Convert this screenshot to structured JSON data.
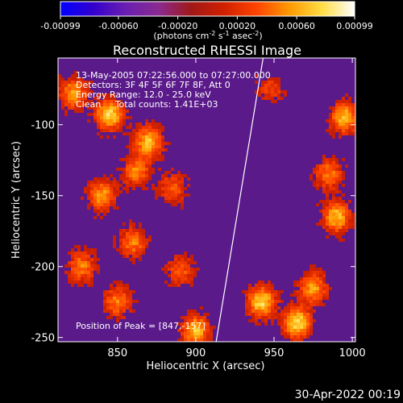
{
  "chart_data": {
    "type": "heatmap",
    "title": "Reconstructed RHESSI Image",
    "xlabel": "Heliocentric X (arcsec)",
    "ylabel": "Heliocentric Y (arcsec)",
    "xlim": [
      812,
      1002
    ],
    "ylim": [
      -253,
      -53
    ],
    "x_ticks": [
      850,
      900,
      950,
      1000
    ],
    "y_ticks": [
      -100,
      -150,
      -200,
      -250
    ],
    "colorbar": {
      "ticks": [
        "-0.00099",
        "-0.00060",
        "-0.00020",
        "0.00020",
        "0.00060",
        "0.00099"
      ],
      "range": [
        -0.00099,
        0.00099
      ],
      "unit_label": "(photons cm",
      "unit_exp1": "-2",
      "unit_mid": " s",
      "unit_exp2": "-1",
      "unit_mid2": " asec",
      "unit_exp3": "-2",
      "unit_close": ")",
      "colors": [
        "#0000ff",
        "#3300cc",
        "#6a1fb0",
        "#8a2a90",
        "#a01818",
        "#d02000",
        "#ff4400",
        "#ff9900",
        "#ffdd44",
        "#ffffff"
      ]
    },
    "annotations": [
      "13-May-2005 07:22:56.000 to 07:27:00.000",
      "Detectors: 3F 4F 5F 6F 7F 8F, Att 0",
      "Energy Range: 12.0 - 25.0 keV",
      "Clean     Total counts: 1.41E+03"
    ],
    "peak_label": "Position of Peak = [847,-157]",
    "peak": [
      847,
      -157
    ],
    "limb_line": [
      [
        913,
        -253
      ],
      [
        943,
        -53
      ]
    ],
    "bright_regions": [
      {
        "x": 845,
        "y": -93,
        "value": 0.0009
      },
      {
        "x": 822,
        "y": -78,
        "value": 0.0007
      },
      {
        "x": 870,
        "y": -112,
        "value": 0.0008
      },
      {
        "x": 840,
        "y": -150,
        "value": 0.0007
      },
      {
        "x": 860,
        "y": -183,
        "value": 0.0006
      },
      {
        "x": 885,
        "y": -145,
        "value": 0.0005
      },
      {
        "x": 827,
        "y": -200,
        "value": 0.0006
      },
      {
        "x": 850,
        "y": -225,
        "value": 0.0006
      },
      {
        "x": 900,
        "y": -245,
        "value": 0.0008
      },
      {
        "x": 942,
        "y": -225,
        "value": 0.0009
      },
      {
        "x": 965,
        "y": -240,
        "value": 0.0009
      },
      {
        "x": 990,
        "y": -165,
        "value": 0.0008
      },
      {
        "x": 995,
        "y": -95,
        "value": 0.0008
      },
      {
        "x": 985,
        "y": -135,
        "value": 0.0006
      },
      {
        "x": 975,
        "y": -215,
        "value": 0.0007
      },
      {
        "x": 890,
        "y": -203,
        "value": 0.0005
      },
      {
        "x": 862,
        "y": -133,
        "value": 0.0006
      },
      {
        "x": 948,
        "y": -75,
        "value": 0.0004
      }
    ]
  },
  "footer": {
    "timestamp": "30-Apr-2022 00:19"
  }
}
